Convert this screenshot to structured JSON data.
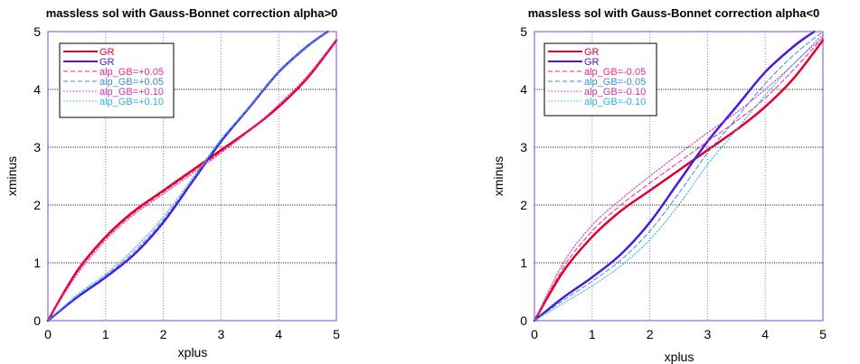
{
  "chart_data": [
    {
      "type": "line",
      "title": "massless sol with Gauss-Bonnet correction alpha>0",
      "xlabel": "xplus",
      "ylabel": "xminus",
      "xlim": [
        0,
        5
      ],
      "ylim": [
        0,
        5
      ],
      "xticks": [
        "0",
        "1",
        "2",
        "3",
        "4",
        "5"
      ],
      "yticks": [
        "0",
        "1",
        "2",
        "3",
        "4",
        "5"
      ],
      "grid": true,
      "legend_position": "top-left",
      "series": [
        {
          "name": "GR",
          "color": "#e0002a",
          "style": "solid",
          "width": 2.5,
          "x": [
            0,
            0.5,
            1.0,
            1.5,
            2.0,
            2.5,
            3.0,
            3.5,
            4.0,
            4.5,
            5.0
          ],
          "y": [
            0,
            0.85,
            1.45,
            1.9,
            2.25,
            2.6,
            2.95,
            3.3,
            3.7,
            4.2,
            4.85
          ]
        },
        {
          "name": "GR",
          "color": "#4b1adc",
          "style": "solid",
          "width": 2.5,
          "x": [
            0,
            0.5,
            1.0,
            1.5,
            2.0,
            2.5,
            3.0,
            3.5,
            4.0,
            4.5,
            4.85
          ],
          "y": [
            0,
            0.4,
            0.75,
            1.15,
            1.7,
            2.4,
            3.1,
            3.7,
            4.3,
            4.75,
            5.0
          ]
        },
        {
          "name": "alp_GB=+0.05",
          "color": "#e8278f",
          "style": "dashed",
          "width": 1,
          "x": [
            0,
            0.5,
            1.0,
            1.5,
            2.0,
            2.5,
            3.0,
            3.5,
            4.0,
            4.5,
            5.0
          ],
          "y": [
            0,
            0.82,
            1.42,
            1.87,
            2.22,
            2.57,
            2.92,
            3.3,
            3.72,
            4.22,
            4.86
          ]
        },
        {
          "name": "alp_GB=+0.05",
          "color": "#3a8fd6",
          "style": "dashed",
          "width": 1,
          "x": [
            0,
            0.5,
            1.0,
            1.5,
            2.0,
            2.5,
            3.0,
            3.5,
            4.0,
            4.5,
            4.85
          ],
          "y": [
            0,
            0.42,
            0.78,
            1.2,
            1.75,
            2.43,
            3.12,
            3.7,
            4.3,
            4.75,
            5.0
          ]
        },
        {
          "name": "alp_GB=+0.10",
          "color": "#d62aa8",
          "style": "dotted",
          "width": 1,
          "x": [
            0,
            0.5,
            1.0,
            1.5,
            2.0,
            2.5,
            3.0,
            3.5,
            4.0,
            4.5,
            5.0
          ],
          "y": [
            0,
            0.79,
            1.39,
            1.84,
            2.19,
            2.54,
            2.9,
            3.29,
            3.74,
            4.24,
            4.87
          ]
        },
        {
          "name": "alp_GB=+0.10",
          "color": "#2fb0e0",
          "style": "dotted",
          "width": 1,
          "x": [
            0,
            0.5,
            1.0,
            1.5,
            2.0,
            2.5,
            3.0,
            3.5,
            4.0,
            4.5,
            4.85
          ],
          "y": [
            0,
            0.44,
            0.81,
            1.25,
            1.8,
            2.46,
            3.14,
            3.71,
            4.3,
            4.75,
            5.0
          ]
        }
      ]
    },
    {
      "type": "line",
      "title": "massless sol with Gauss-Bonnet correction alpha<0",
      "xlabel": "xplus",
      "ylabel": "xminus",
      "xlim": [
        0,
        5
      ],
      "ylim": [
        0,
        5
      ],
      "xticks": [
        "0",
        "1",
        "2",
        "3",
        "4",
        "5"
      ],
      "yticks": [
        "0",
        "1",
        "2",
        "3",
        "4",
        "5"
      ],
      "grid": true,
      "legend_position": "top-left",
      "series": [
        {
          "name": "GR",
          "color": "#e0002a",
          "style": "solid",
          "width": 2.5,
          "x": [
            0,
            0.5,
            1.0,
            1.5,
            2.0,
            2.5,
            3.0,
            3.5,
            4.0,
            4.5,
            5.0
          ],
          "y": [
            0,
            0.85,
            1.45,
            1.9,
            2.25,
            2.6,
            2.95,
            3.3,
            3.7,
            4.2,
            4.85
          ]
        },
        {
          "name": "GR",
          "color": "#4b1adc",
          "style": "solid",
          "width": 2.5,
          "x": [
            0,
            0.5,
            1.0,
            1.5,
            2.0,
            2.5,
            3.0,
            3.5,
            4.0,
            4.5,
            4.85
          ],
          "y": [
            0,
            0.4,
            0.75,
            1.15,
            1.7,
            2.4,
            3.1,
            3.7,
            4.3,
            4.75,
            5.0
          ]
        },
        {
          "name": "alp_GB=-0.05",
          "color": "#e8278f",
          "style": "dashed",
          "width": 1,
          "x": [
            0,
            0.5,
            1.0,
            1.5,
            2.0,
            2.5,
            3.0,
            3.5,
            4.0,
            4.5,
            5.0
          ],
          "y": [
            0,
            0.92,
            1.55,
            2.0,
            2.38,
            2.74,
            3.1,
            3.45,
            3.85,
            4.35,
            4.9
          ]
        },
        {
          "name": "alp_GB=-0.05",
          "color": "#3a8fd6",
          "style": "dashed",
          "width": 1,
          "x": [
            0,
            0.5,
            1.0,
            1.5,
            2.0,
            2.5,
            3.0,
            3.5,
            4.0,
            4.5,
            5.0
          ],
          "y": [
            0,
            0.35,
            0.68,
            1.05,
            1.55,
            2.2,
            2.9,
            3.5,
            4.1,
            4.6,
            5.0
          ]
        },
        {
          "name": "alp_GB=-0.10",
          "color": "#d62aa8",
          "style": "dotted",
          "width": 1,
          "x": [
            0,
            0.5,
            1.0,
            1.5,
            2.0,
            2.5,
            3.0,
            3.5,
            4.0,
            4.5,
            5.0
          ],
          "y": [
            0,
            1.0,
            1.65,
            2.1,
            2.5,
            2.88,
            3.25,
            3.6,
            4.0,
            4.45,
            4.95
          ]
        },
        {
          "name": "alp_GB=-0.10",
          "color": "#2fb0e0",
          "style": "dotted",
          "width": 1,
          "x": [
            0,
            0.5,
            1.0,
            1.5,
            2.0,
            2.5,
            3.0,
            3.5,
            4.0,
            4.5,
            5.0
          ],
          "y": [
            0,
            0.3,
            0.6,
            0.95,
            1.4,
            2.0,
            2.7,
            3.3,
            3.9,
            4.45,
            4.9
          ]
        }
      ]
    }
  ]
}
